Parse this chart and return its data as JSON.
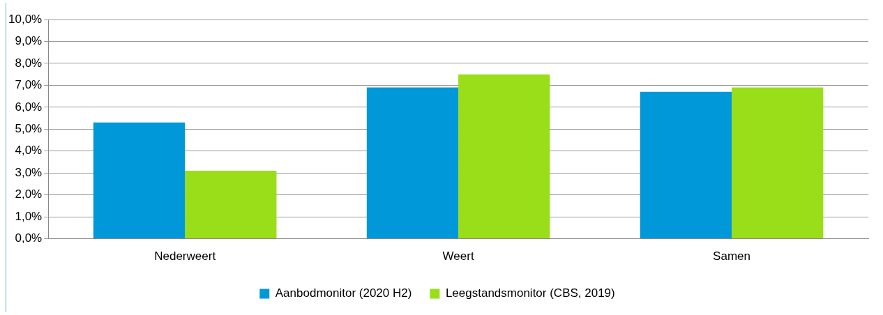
{
  "chart_data": {
    "type": "bar",
    "categories": [
      "Nederweert",
      "Weert",
      "Samen"
    ],
    "series": [
      {
        "name": "Aanbodmonitor (2020 H2)",
        "color": "#0098d8",
        "values": [
          5.3,
          6.9,
          6.7
        ]
      },
      {
        "name": "Leegstandsmonitor (CBS, 2019)",
        "color": "#9ade1a",
        "values": [
          3.1,
          7.5,
          6.9
        ]
      }
    ],
    "ylim": [
      0,
      10
    ],
    "yticks": [
      {
        "value": 0,
        "label": "0,0%"
      },
      {
        "value": 1,
        "label": "1,0%"
      },
      {
        "value": 2,
        "label": "2,0%"
      },
      {
        "value": 3,
        "label": "3,0%"
      },
      {
        "value": 4,
        "label": "4,0%"
      },
      {
        "value": 5,
        "label": "5,0%"
      },
      {
        "value": 6,
        "label": "6,0%"
      },
      {
        "value": 7,
        "label": "7,0%"
      },
      {
        "value": 8,
        "label": "8,0%"
      },
      {
        "value": 9,
        "label": "9,0%"
      },
      {
        "value": 10,
        "label": "10,0%"
      }
    ],
    "grid": "y",
    "legend": "bottom"
  }
}
